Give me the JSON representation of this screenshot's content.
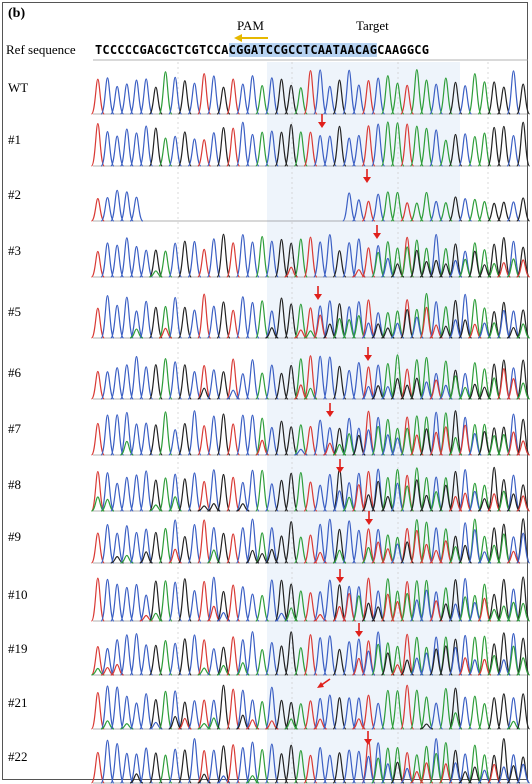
{
  "panel_label": "(b)",
  "pam_label": "PAM",
  "target_label": "Target",
  "ref_label": "Ref sequence",
  "ref_sequence": {
    "before": "TCCCCCGACGCTCGTCCA",
    "target": "CGGATCCGCCTCAATAACAG",
    "after": "CAAGGCG"
  },
  "colors": {
    "A": "#2e9e3a",
    "C": "#3b5fc4",
    "G": "#222222",
    "T": "#d93a35",
    "marker": "#e0201b",
    "target_highlight": "#b7d3f2",
    "pam_arrow": "#e6b800"
  },
  "samples": [
    {
      "label": "WT",
      "marker": null
    },
    {
      "label": "#1",
      "marker": "down"
    },
    {
      "label": "#2",
      "marker": "down"
    },
    {
      "label": "#3",
      "marker": "down"
    },
    {
      "label": "#5",
      "marker": "down"
    },
    {
      "label": "#6",
      "marker": "down"
    },
    {
      "label": "#7",
      "marker": "down"
    },
    {
      "label": "#8",
      "marker": "down"
    },
    {
      "label": "#9",
      "marker": "down"
    },
    {
      "label": "#10",
      "marker": "down"
    },
    {
      "label": "#19",
      "marker": "down"
    },
    {
      "label": "#21",
      "marker": "diagonal"
    },
    {
      "label": "#22",
      "marker": "down"
    }
  ]
}
